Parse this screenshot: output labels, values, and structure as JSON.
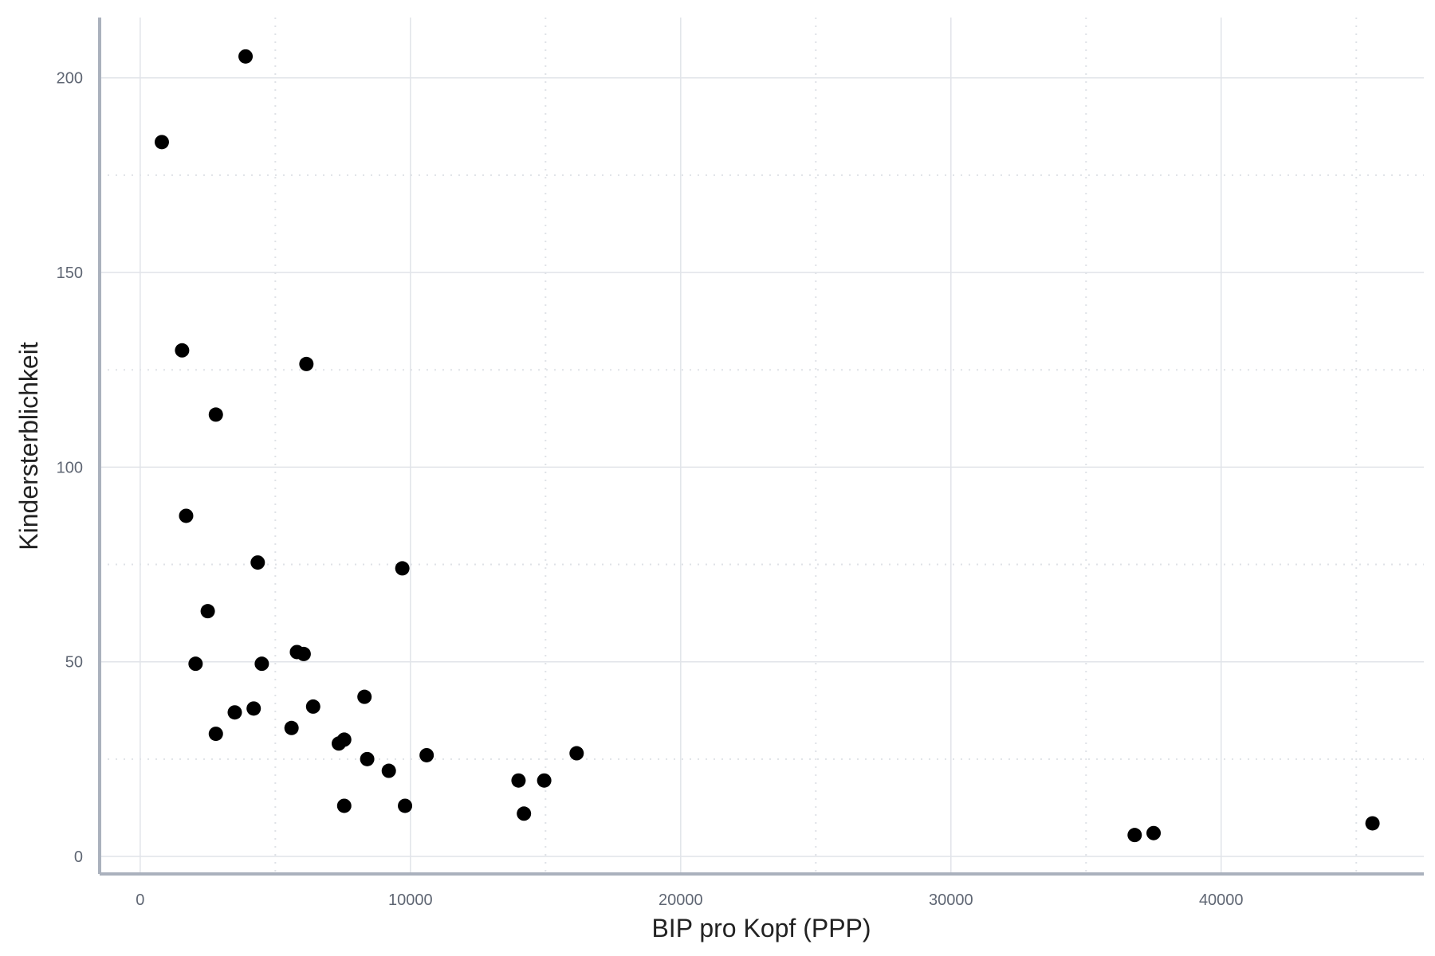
{
  "chart_data": {
    "type": "scatter",
    "title": "",
    "xlabel": "BIP pro Kopf (PPP)",
    "ylabel": "Kindersterblichkeit",
    "xlim": [
      -1500,
      47500
    ],
    "ylim": [
      -4.5,
      215.5
    ],
    "x_ticks": [
      0,
      10000,
      20000,
      30000,
      40000
    ],
    "x_tick_labels": [
      "0",
      "10000",
      "20000",
      "30000",
      "40000"
    ],
    "y_ticks": [
      0,
      50,
      100,
      150,
      200
    ],
    "y_tick_labels": [
      "0",
      "50",
      "100",
      "150",
      "200"
    ],
    "x_minor_ticks": [
      5000,
      15000,
      25000,
      35000,
      45000
    ],
    "y_minor_ticks": [
      25,
      75,
      125,
      175
    ],
    "grid": true,
    "legend": "none",
    "point_color": "#000000",
    "series": [
      {
        "points": [
          {
            "x": 3900,
            "y": 205.5
          },
          {
            "x": 800,
            "y": 183.5
          },
          {
            "x": 1550,
            "y": 130
          },
          {
            "x": 6150,
            "y": 126.5
          },
          {
            "x": 2800,
            "y": 113.5
          },
          {
            "x": 1700,
            "y": 87.5
          },
          {
            "x": 4350,
            "y": 75.5
          },
          {
            "x": 9700,
            "y": 74
          },
          {
            "x": 2500,
            "y": 63
          },
          {
            "x": 2050,
            "y": 49.5
          },
          {
            "x": 4500,
            "y": 49.5
          },
          {
            "x": 5800,
            "y": 52.5
          },
          {
            "x": 6050,
            "y": 52
          },
          {
            "x": 8300,
            "y": 41
          },
          {
            "x": 6400,
            "y": 38.5
          },
          {
            "x": 3500,
            "y": 37
          },
          {
            "x": 4200,
            "y": 38
          },
          {
            "x": 5600,
            "y": 33
          },
          {
            "x": 2800,
            "y": 31.5
          },
          {
            "x": 7550,
            "y": 30
          },
          {
            "x": 7350,
            "y": 29
          },
          {
            "x": 8400,
            "y": 25
          },
          {
            "x": 10600,
            "y": 26
          },
          {
            "x": 9200,
            "y": 22
          },
          {
            "x": 16150,
            "y": 26.5
          },
          {
            "x": 14000,
            "y": 19.5
          },
          {
            "x": 14950,
            "y": 19.5
          },
          {
            "x": 7550,
            "y": 13
          },
          {
            "x": 9800,
            "y": 13
          },
          {
            "x": 14200,
            "y": 11
          },
          {
            "x": 36800,
            "y": 5.5
          },
          {
            "x": 37500,
            "y": 6
          },
          {
            "x": 45600,
            "y": 8.5
          }
        ]
      }
    ]
  }
}
